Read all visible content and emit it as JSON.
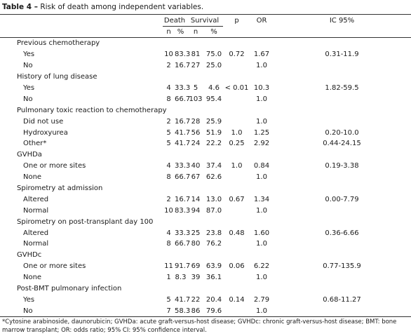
{
  "caption": {
    "label": "Table 4 –",
    "text": " Risk of death among independent variables."
  },
  "header": {
    "death": "Death",
    "survival": "Survival",
    "p": "p",
    "or": "OR",
    "ic": "IC 95%",
    "n": "n",
    "pct": "%"
  },
  "rows": [
    {
      "kind": "cat",
      "label": "Previous chemotherapy"
    },
    {
      "kind": "sub",
      "label": "Yes",
      "dn": "10",
      "dp": "83.3",
      "sn": "81",
      "sp": "75.0",
      "p": "0.72",
      "or": "1.67",
      "ic": "0.31-11.9"
    },
    {
      "kind": "sub",
      "label": "No",
      "dn": "2",
      "dp": "16.7",
      "sn": "27",
      "sp": "25.0",
      "p": "",
      "or": "1.0",
      "ic": ""
    },
    {
      "kind": "cat",
      "label": "History of lung disease"
    },
    {
      "kind": "sub",
      "label": "Yes",
      "dn": "4",
      "dp": "33.3",
      "sn": "5",
      "sp": "4.6",
      "p": "< 0.01",
      "or": "10.3",
      "ic": "1.82-59.5"
    },
    {
      "kind": "sub",
      "label": "No",
      "dn": "8",
      "dp": "66.7",
      "sn": "103",
      "sp": "95.4",
      "p": "",
      "or": "1.0",
      "ic": ""
    },
    {
      "kind": "cat",
      "label": "Pulmonary toxic reaction to chemotherapy"
    },
    {
      "kind": "sub",
      "label": "Did not use",
      "dn": "2",
      "dp": "16.7",
      "sn": "28",
      "sp": "25.9",
      "p": "",
      "or": "1.0",
      "ic": ""
    },
    {
      "kind": "sub",
      "label": "Hydroxyurea",
      "dn": "5",
      "dp": "41.7",
      "sn": "56",
      "sp": "51.9",
      "p": "1.0",
      "or": "1.25",
      "ic": "0.20-10.0"
    },
    {
      "kind": "sub",
      "label": "Other*",
      "dn": "5",
      "dp": "41.7",
      "sn": "24",
      "sp": "22.2",
      "p": "0.25",
      "or": "2.92",
      "ic": "0.44-24.15"
    },
    {
      "kind": "cat",
      "label": "GVHDa"
    },
    {
      "kind": "sub",
      "label": "One or more sites",
      "dn": "4",
      "dp": "33.3",
      "sn": "40",
      "sp": "37.4",
      "p": "1.0",
      "or": "0.84",
      "ic": "0.19-3.38"
    },
    {
      "kind": "sub",
      "label": "None",
      "dn": "8",
      "dp": "66.7",
      "sn": "67",
      "sp": "62.6",
      "p": "",
      "or": "1.0",
      "ic": ""
    },
    {
      "kind": "cat",
      "label": "Spirometry at admission"
    },
    {
      "kind": "sub",
      "label": "Altered",
      "dn": "2",
      "dp": "16.7",
      "sn": "14",
      "sp": "13.0",
      "p": "0.67",
      "or": "1.34",
      "ic": "0.00-7.79"
    },
    {
      "kind": "sub",
      "label": "Normal",
      "dn": "10",
      "dp": "83.3",
      "sn": "94",
      "sp": "87.0",
      "p": "",
      "or": "1.0",
      "ic": ""
    },
    {
      "kind": "cat",
      "label": "Spirometry on post-transplant day 100"
    },
    {
      "kind": "sub",
      "label": "Altered",
      "dn": "4",
      "dp": "33.3",
      "sn": "25",
      "sp": "23.8",
      "p": "0.48",
      "or": "1.60",
      "ic": "0.36-6.66"
    },
    {
      "kind": "sub",
      "label": "Normal",
      "dn": "8",
      "dp": "66.7",
      "sn": "80",
      "sp": "76.2",
      "p": "",
      "or": "1.0",
      "ic": ""
    },
    {
      "kind": "cat",
      "label": "GVHDc"
    },
    {
      "kind": "sub",
      "label": "One or more sites",
      "dn": "11",
      "dp": "91.7",
      "sn": "69",
      "sp": "63.9",
      "p": "0.06",
      "or": "6.22",
      "ic": "0.77-135.9"
    },
    {
      "kind": "sub",
      "label": "None",
      "dn": "1",
      "dp": "8.3",
      "sn": "39",
      "sp": "36.1",
      "p": "",
      "or": "1.0",
      "ic": ""
    },
    {
      "kind": "cat",
      "label": "Post-BMT pulmonary infection"
    },
    {
      "kind": "sub",
      "label": "Yes",
      "dn": "5",
      "dp": "41.7",
      "sn": "22",
      "sp": "20.4",
      "p": "0.14",
      "or": "2.79",
      "ic": "0.68-11.27"
    },
    {
      "kind": "sub",
      "label": "No",
      "dn": "7",
      "dp": "58.3",
      "sn": "86",
      "sp": "79.6",
      "p": "",
      "or": "1.0",
      "ic": ""
    }
  ],
  "footnote": "*Cytosine arabinoside, daunorubicin; GVHDa: acute graft-versus-host disease; GVHDc: chronic graft-versus-host disease; BMT: bone marrow transplant; OR: odds ratio; 95% CI: 95% confidence interval."
}
